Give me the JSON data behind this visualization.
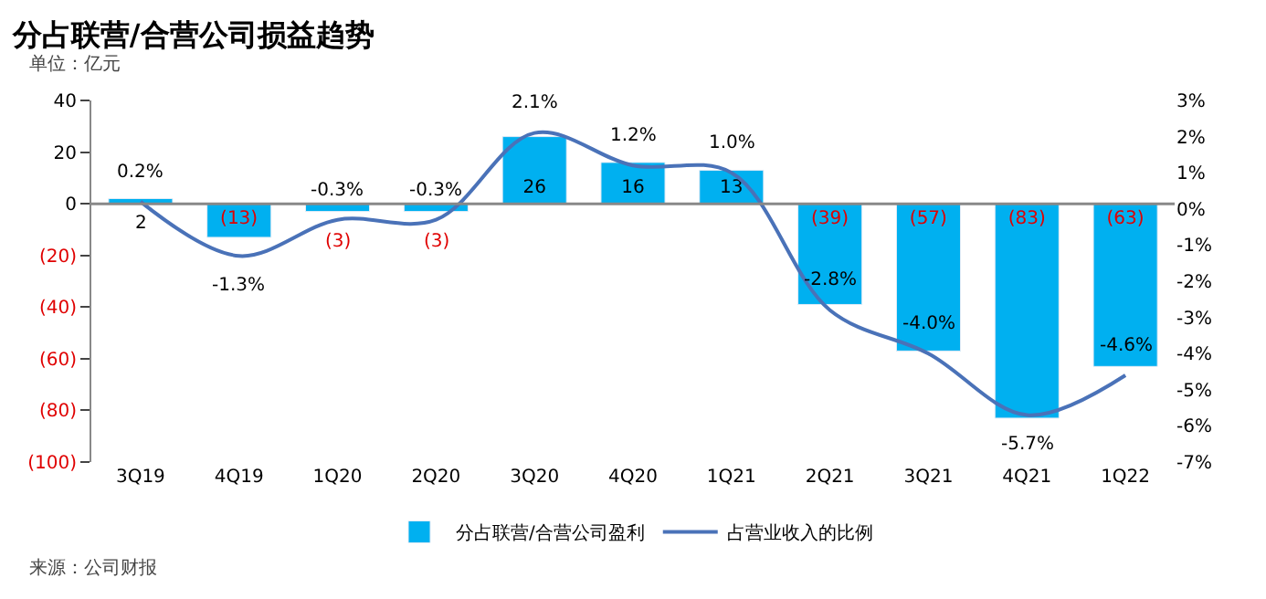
{
  "chart_data": {
    "type": "bar",
    "title": "分占联营/合营公司损益趋势",
    "subtitle": "单位：亿元",
    "categories": [
      "3Q19",
      "4Q19",
      "1Q20",
      "2Q20",
      "3Q20",
      "4Q20",
      "1Q21",
      "2Q21",
      "3Q21",
      "4Q21",
      "1Q22"
    ],
    "series": [
      {
        "name": "分占联营/合营公司盈利",
        "color": "#00b0f0",
        "values": [
          2,
          -13,
          -3,
          -3,
          26,
          16,
          13,
          -39,
          -57,
          -83,
          -63
        ],
        "value_labels": [
          "2",
          "(13)",
          "(3)",
          "(3)",
          "26",
          "16",
          "13",
          "(39)",
          "(57)",
          "(83)",
          "(63)"
        ]
      },
      {
        "name": "占营业收入的比例",
        "type": "line",
        "axis": "y2",
        "color": "#4a72b8",
        "values": [
          0.2,
          -1.3,
          -0.3,
          -0.3,
          2.1,
          1.2,
          1.0,
          -2.8,
          -4.0,
          -5.7,
          -4.6
        ],
        "value_labels": [
          "0.2%",
          "-1.3%",
          "-0.3%",
          "-0.3%",
          "2.1%",
          "1.2%",
          "1.0%",
          "-2.8%",
          "-4.0%",
          "-5.7%",
          "-4.6%"
        ]
      }
    ],
    "ylim": [
      -100,
      40
    ],
    "yticks": [
      {
        "value": -100,
        "label": "(100)"
      },
      {
        "value": -80,
        "label": "(80)"
      },
      {
        "value": -60,
        "label": "(60)"
      },
      {
        "value": -40,
        "label": "(40)"
      },
      {
        "value": -20,
        "label": "(20)"
      },
      0,
      20,
      40
    ],
    "y2lim": [
      -7,
      3
    ],
    "y2ticks": [
      {
        "value": -7,
        "label": "-7%"
      },
      {
        "value": -6,
        "label": "-6%"
      },
      {
        "value": -5,
        "label": "-5%"
      },
      {
        "value": -4,
        "label": "-4%"
      },
      {
        "value": -3,
        "label": "-3%"
      },
      {
        "value": -2,
        "label": "-2%"
      },
      {
        "value": -1,
        "label": "-1%"
      },
      {
        "value": 0,
        "label": "0%"
      },
      {
        "value": 1,
        "label": "1%"
      },
      {
        "value": 2,
        "label": "2%"
      },
      {
        "value": 3,
        "label": "3%"
      }
    ],
    "ref_lines": [
      {
        "axis": "y",
        "value": 0,
        "color": "#888888"
      }
    ],
    "legend": "bottom",
    "annotations": [
      "来源：公司财报"
    ]
  }
}
